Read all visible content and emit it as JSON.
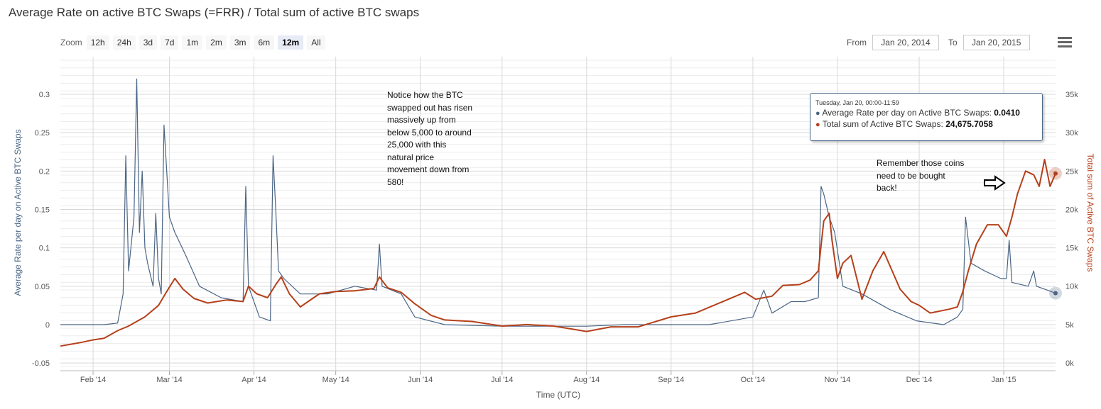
{
  "title": "Average Rate on active BTC Swaps (=FRR) / Total sum of active BTC swaps",
  "zoom": {
    "label": "Zoom",
    "buttons": [
      "12h",
      "24h",
      "3d",
      "7d",
      "1m",
      "2m",
      "3m",
      "6m",
      "12m",
      "All"
    ],
    "active": "12m"
  },
  "range": {
    "from_label": "From",
    "from_value": "Jan 20, 2014",
    "to_label": "To",
    "to_value": "Jan 20, 2015"
  },
  "tooltip": {
    "header": "Tuesday, Jan 20, 00:00-11:59",
    "rate_label": "Average Rate per day on Active BTC Swaps: ",
    "rate_value": "0.0410",
    "sum_label": "Total sum of Active BTC Swaps: ",
    "sum_value": "24,675.7058"
  },
  "annotations": {
    "left": [
      "Notice how the BTC",
      "swapped out has risen",
      "massively up from",
      "below 5,000 to around",
      "25,000 with this",
      "natural price",
      "movement down from",
      "580!"
    ],
    "right": [
      "Remember those coins",
      "need to be bought",
      "back!"
    ]
  },
  "colors": {
    "rate": "#4a6584",
    "sum": "#b5401a",
    "grid": "#d8d8d8"
  },
  "chart_data": {
    "type": "line",
    "title": "Average Rate on active BTC Swaps (=FRR) / Total sum of active BTC swaps",
    "xlabel": "Time (UTC)",
    "x_ticks": [
      "Feb '14",
      "Mar '14",
      "Apr '14",
      "May '14",
      "Jun '14",
      "Jul '14",
      "Aug '14",
      "Sep '14",
      "Oct '14",
      "Nov '14",
      "Dec '14",
      "Jan '15"
    ],
    "x_range": [
      "2014-01-20",
      "2015-01-20"
    ],
    "y_left": {
      "label": "Average Rate per day on Active BTC Swaps",
      "ticks": [
        "-0.05",
        "0",
        "0.05",
        "0.1",
        "0.15",
        "0.2",
        "0.25",
        "0.3"
      ],
      "range": [
        -0.05,
        0.3
      ]
    },
    "y_right": {
      "label": "Total sum of Active BTC Swaps",
      "ticks": [
        "0k",
        "5k",
        "10k",
        "15k",
        "20k",
        "25k",
        "30k",
        "35k"
      ],
      "range": [
        0,
        35000
      ]
    },
    "grid": true,
    "series": [
      {
        "name": "Average Rate per day on Active BTC Swaps",
        "axis": "left",
        "points": [
          [
            "2014-01-20",
            0.0
          ],
          [
            "2014-02-05",
            0.0
          ],
          [
            "2014-02-10",
            0.002
          ],
          [
            "2014-02-12",
            0.04
          ],
          [
            "2014-02-13",
            0.22
          ],
          [
            "2014-02-14",
            0.07
          ],
          [
            "2014-02-16",
            0.14
          ],
          [
            "2014-02-17",
            0.32
          ],
          [
            "2014-02-18",
            0.12
          ],
          [
            "2014-02-19",
            0.2
          ],
          [
            "2014-02-20",
            0.1
          ],
          [
            "2014-02-21",
            0.08
          ],
          [
            "2014-02-23",
            0.05
          ],
          [
            "2014-02-24",
            0.145
          ],
          [
            "2014-02-25",
            0.06
          ],
          [
            "2014-02-26",
            0.04
          ],
          [
            "2014-02-27",
            0.26
          ],
          [
            "2014-02-28",
            0.2
          ],
          [
            "2014-03-01",
            0.14
          ],
          [
            "2014-03-03",
            0.12
          ],
          [
            "2014-03-07",
            0.09
          ],
          [
            "2014-03-12",
            0.05
          ],
          [
            "2014-03-20",
            0.035
          ],
          [
            "2014-03-28",
            0.03
          ],
          [
            "2014-03-29",
            0.18
          ],
          [
            "2014-03-30",
            0.05
          ],
          [
            "2014-04-03",
            0.01
          ],
          [
            "2014-04-07",
            0.005
          ],
          [
            "2014-04-08",
            0.22
          ],
          [
            "2014-04-09",
            0.15
          ],
          [
            "2014-04-10",
            0.07
          ],
          [
            "2014-04-12",
            0.06
          ],
          [
            "2014-04-18",
            0.04
          ],
          [
            "2014-04-28",
            0.04
          ],
          [
            "2014-05-08",
            0.05
          ],
          [
            "2014-05-16",
            0.045
          ],
          [
            "2014-05-17",
            0.105
          ],
          [
            "2014-05-18",
            0.05
          ],
          [
            "2014-05-25",
            0.04
          ],
          [
            "2014-05-30",
            0.01
          ],
          [
            "2014-06-10",
            0.0
          ],
          [
            "2014-07-01",
            -0.002
          ],
          [
            "2014-08-01",
            -0.002
          ],
          [
            "2014-08-15",
            0.0
          ],
          [
            "2014-09-15",
            0.0
          ],
          [
            "2014-10-01",
            0.01
          ],
          [
            "2014-10-05",
            0.045
          ],
          [
            "2014-10-08",
            0.015
          ],
          [
            "2014-10-15",
            0.03
          ],
          [
            "2014-10-20",
            0.03
          ],
          [
            "2014-10-25",
            0.035
          ],
          [
            "2014-10-26",
            0.18
          ],
          [
            "2014-10-27",
            0.17
          ],
          [
            "2014-10-29",
            0.14
          ],
          [
            "2014-10-31",
            0.12
          ],
          [
            "2014-11-03",
            0.05
          ],
          [
            "2014-11-10",
            0.04
          ],
          [
            "2014-11-20",
            0.02
          ],
          [
            "2014-11-30",
            0.005
          ],
          [
            "2014-12-10",
            0.0
          ],
          [
            "2014-12-15",
            0.01
          ],
          [
            "2014-12-17",
            0.02
          ],
          [
            "2014-12-18",
            0.14
          ],
          [
            "2014-12-20",
            0.08
          ],
          [
            "2014-12-25",
            0.07
          ],
          [
            "2014-12-31",
            0.06
          ],
          [
            "2015-01-02",
            0.06
          ],
          [
            "2015-01-03",
            0.11
          ],
          [
            "2015-01-04",
            0.055
          ],
          [
            "2015-01-10",
            0.05
          ],
          [
            "2015-01-12",
            0.07
          ],
          [
            "2015-01-13",
            0.05
          ],
          [
            "2015-01-17",
            0.045
          ],
          [
            "2015-01-20",
            0.041
          ]
        ]
      },
      {
        "name": "Total sum of Active BTC Swaps",
        "axis": "right",
        "points": [
          [
            "2014-01-20",
            2200
          ],
          [
            "2014-01-25",
            2500
          ],
          [
            "2014-01-28",
            2700
          ],
          [
            "2014-02-01",
            3000
          ],
          [
            "2014-02-05",
            3200
          ],
          [
            "2014-02-10",
            4200
          ],
          [
            "2014-02-14",
            4800
          ],
          [
            "2014-02-20",
            6000
          ],
          [
            "2014-02-25",
            7500
          ],
          [
            "2014-02-28",
            9300
          ],
          [
            "2014-03-03",
            11000
          ],
          [
            "2014-03-06",
            9600
          ],
          [
            "2014-03-10",
            8400
          ],
          [
            "2014-03-15",
            7800
          ],
          [
            "2014-03-22",
            8200
          ],
          [
            "2014-03-28",
            8000
          ],
          [
            "2014-03-30",
            10000
          ],
          [
            "2014-04-02",
            9000
          ],
          [
            "2014-04-06",
            8500
          ],
          [
            "2014-04-09",
            10200
          ],
          [
            "2014-04-11",
            11200
          ],
          [
            "2014-04-14",
            9000
          ],
          [
            "2014-04-18",
            7300
          ],
          [
            "2014-04-25",
            9000
          ],
          [
            "2014-05-01",
            9300
          ],
          [
            "2014-05-08",
            9400
          ],
          [
            "2014-05-15",
            9700
          ],
          [
            "2014-05-17",
            11200
          ],
          [
            "2014-05-20",
            9800
          ],
          [
            "2014-05-25",
            9200
          ],
          [
            "2014-05-30",
            7700
          ],
          [
            "2014-06-05",
            6200
          ],
          [
            "2014-06-10",
            5600
          ],
          [
            "2014-06-20",
            5400
          ],
          [
            "2014-07-01",
            4800
          ],
          [
            "2014-07-10",
            5000
          ],
          [
            "2014-07-20",
            4800
          ],
          [
            "2014-08-01",
            4100
          ],
          [
            "2014-08-10",
            4700
          ],
          [
            "2014-08-20",
            4700
          ],
          [
            "2014-09-01",
            6000
          ],
          [
            "2014-09-10",
            6500
          ],
          [
            "2014-09-20",
            8000
          ],
          [
            "2014-09-28",
            9200
          ],
          [
            "2014-10-02",
            8300
          ],
          [
            "2014-10-08",
            8700
          ],
          [
            "2014-10-12",
            10100
          ],
          [
            "2014-10-18",
            10200
          ],
          [
            "2014-10-22",
            10800
          ],
          [
            "2014-10-25",
            12000
          ],
          [
            "2014-10-27",
            18500
          ],
          [
            "2014-10-29",
            19500
          ],
          [
            "2014-10-30",
            16000
          ],
          [
            "2014-11-01",
            11000
          ],
          [
            "2014-11-03",
            13000
          ],
          [
            "2014-11-06",
            14000
          ],
          [
            "2014-11-10",
            8300
          ],
          [
            "2014-11-14",
            12000
          ],
          [
            "2014-11-18",
            14500
          ],
          [
            "2014-11-24",
            9600
          ],
          [
            "2014-11-28",
            8000
          ],
          [
            "2014-12-01",
            7500
          ],
          [
            "2014-12-05",
            6500
          ],
          [
            "2014-12-12",
            7000
          ],
          [
            "2014-12-15",
            7300
          ],
          [
            "2014-12-17",
            9300
          ],
          [
            "2014-12-19",
            12000
          ],
          [
            "2014-12-22",
            15500
          ],
          [
            "2014-12-26",
            18000
          ],
          [
            "2014-12-30",
            18000
          ],
          [
            "2015-01-02",
            16500
          ],
          [
            "2015-01-04",
            19000
          ],
          [
            "2015-01-06",
            22000
          ],
          [
            "2015-01-09",
            25000
          ],
          [
            "2015-01-12",
            24500
          ],
          [
            "2015-01-14",
            23000
          ],
          [
            "2015-01-16",
            26500
          ],
          [
            "2015-01-18",
            23000
          ],
          [
            "2015-01-20",
            24675.7058
          ]
        ]
      }
    ]
  }
}
